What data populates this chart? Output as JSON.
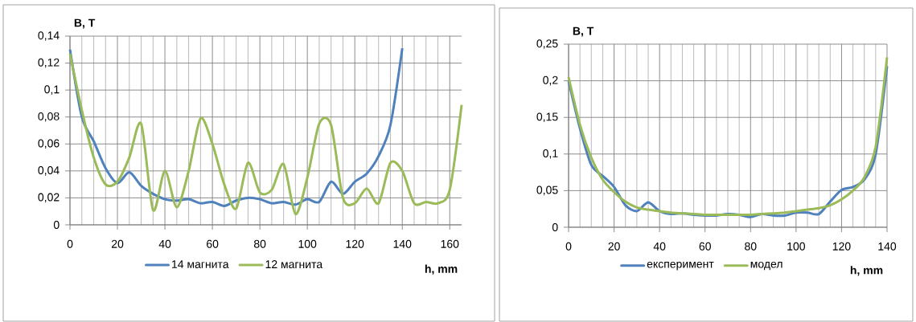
{
  "chart_data": [
    {
      "type": "line",
      "xlabel": "h, mm",
      "ylabel": "B, T",
      "xlim": [
        0,
        165
      ],
      "ylim": [
        0,
        0.14
      ],
      "xticks": [
        0,
        20,
        40,
        60,
        80,
        100,
        120,
        140,
        160
      ],
      "yticks": [
        0,
        {
          "value": 0.02,
          "label": "0,02"
        },
        {
          "value": 0.04,
          "label": "0,04"
        },
        {
          "value": 0.06,
          "label": "0,06"
        },
        {
          "value": 0.08,
          "label": "0,08"
        },
        {
          "value": 0.1,
          "label": "0,1"
        },
        {
          "value": 0.12,
          "label": "0,12"
        },
        {
          "value": 0.14,
          "label": "0,14"
        }
      ],
      "grid": true,
      "legend": "bottom",
      "series": [
        {
          "name": "14 магнита",
          "color": "#4f81bd",
          "x": [
            0,
            5,
            10,
            15,
            20,
            25,
            30,
            35,
            40,
            45,
            50,
            55,
            60,
            65,
            70,
            75,
            80,
            85,
            90,
            95,
            100,
            105,
            110,
            115,
            120,
            125,
            130,
            135,
            140
          ],
          "values": [
            0.13,
            0.08,
            0.062,
            0.042,
            0.031,
            0.039,
            0.029,
            0.023,
            0.019,
            0.018,
            0.019,
            0.016,
            0.017,
            0.014,
            0.018,
            0.02,
            0.019,
            0.016,
            0.017,
            0.015,
            0.019,
            0.017,
            0.032,
            0.023,
            0.032,
            0.038,
            0.051,
            0.074,
            0.131
          ]
        },
        {
          "name": "12 магнита",
          "color": "#9bbb59",
          "x": [
            0,
            5,
            10,
            15,
            20,
            25,
            30,
            35,
            40,
            45,
            50,
            55,
            60,
            65,
            70,
            75,
            80,
            85,
            90,
            95,
            100,
            105,
            110,
            115,
            120,
            125,
            130,
            135,
            140,
            145,
            150,
            155,
            160,
            165
          ],
          "values": [
            0.127,
            0.085,
            0.05,
            0.03,
            0.032,
            0.05,
            0.075,
            0.011,
            0.04,
            0.013,
            0.04,
            0.079,
            0.06,
            0.03,
            0.012,
            0.046,
            0.024,
            0.026,
            0.045,
            0.008,
            0.035,
            0.075,
            0.074,
            0.02,
            0.016,
            0.027,
            0.016,
            0.046,
            0.04,
            0.016,
            0.017,
            0.016,
            0.026,
            0.089
          ]
        }
      ]
    },
    {
      "type": "line",
      "xlabel": "h, mm",
      "ylabel": "B, T",
      "xlim": [
        0,
        140
      ],
      "ylim": [
        0,
        0.25
      ],
      "xticks": [
        0,
        20,
        40,
        60,
        80,
        100,
        120,
        140
      ],
      "yticks": [
        0,
        {
          "value": 0.05,
          "label": "0,05"
        },
        {
          "value": 0.1,
          "label": "0,1"
        },
        {
          "value": 0.15,
          "label": "0,15"
        },
        {
          "value": 0.2,
          "label": "0,2"
        },
        {
          "value": 0.25,
          "label": "0,25"
        }
      ],
      "grid": true,
      "legend": "bottom",
      "series": [
        {
          "name": "експеримент",
          "color": "#4f81bd",
          "x": [
            0,
            5,
            10,
            15,
            20,
            25,
            30,
            35,
            40,
            45,
            50,
            55,
            60,
            65,
            70,
            75,
            80,
            85,
            90,
            95,
            100,
            105,
            110,
            115,
            120,
            125,
            130,
            135,
            140
          ],
          "values": [
            0.2,
            0.135,
            0.085,
            0.07,
            0.055,
            0.03,
            0.022,
            0.034,
            0.022,
            0.018,
            0.019,
            0.017,
            0.016,
            0.016,
            0.018,
            0.017,
            0.014,
            0.018,
            0.016,
            0.016,
            0.02,
            0.02,
            0.018,
            0.035,
            0.051,
            0.055,
            0.065,
            0.1,
            0.22
          ]
        },
        {
          "name": "модел",
          "color": "#9bbb59",
          "x": [
            0,
            5,
            10,
            15,
            20,
            25,
            30,
            35,
            40,
            45,
            50,
            55,
            60,
            65,
            70,
            75,
            80,
            85,
            90,
            95,
            100,
            105,
            110,
            115,
            120,
            125,
            130,
            135,
            140
          ],
          "values": [
            0.205,
            0.14,
            0.095,
            0.065,
            0.048,
            0.035,
            0.027,
            0.024,
            0.022,
            0.02,
            0.019,
            0.018,
            0.017,
            0.017,
            0.017,
            0.017,
            0.017,
            0.018,
            0.019,
            0.02,
            0.022,
            0.024,
            0.026,
            0.03,
            0.038,
            0.05,
            0.068,
            0.11,
            0.232
          ]
        }
      ]
    }
  ]
}
